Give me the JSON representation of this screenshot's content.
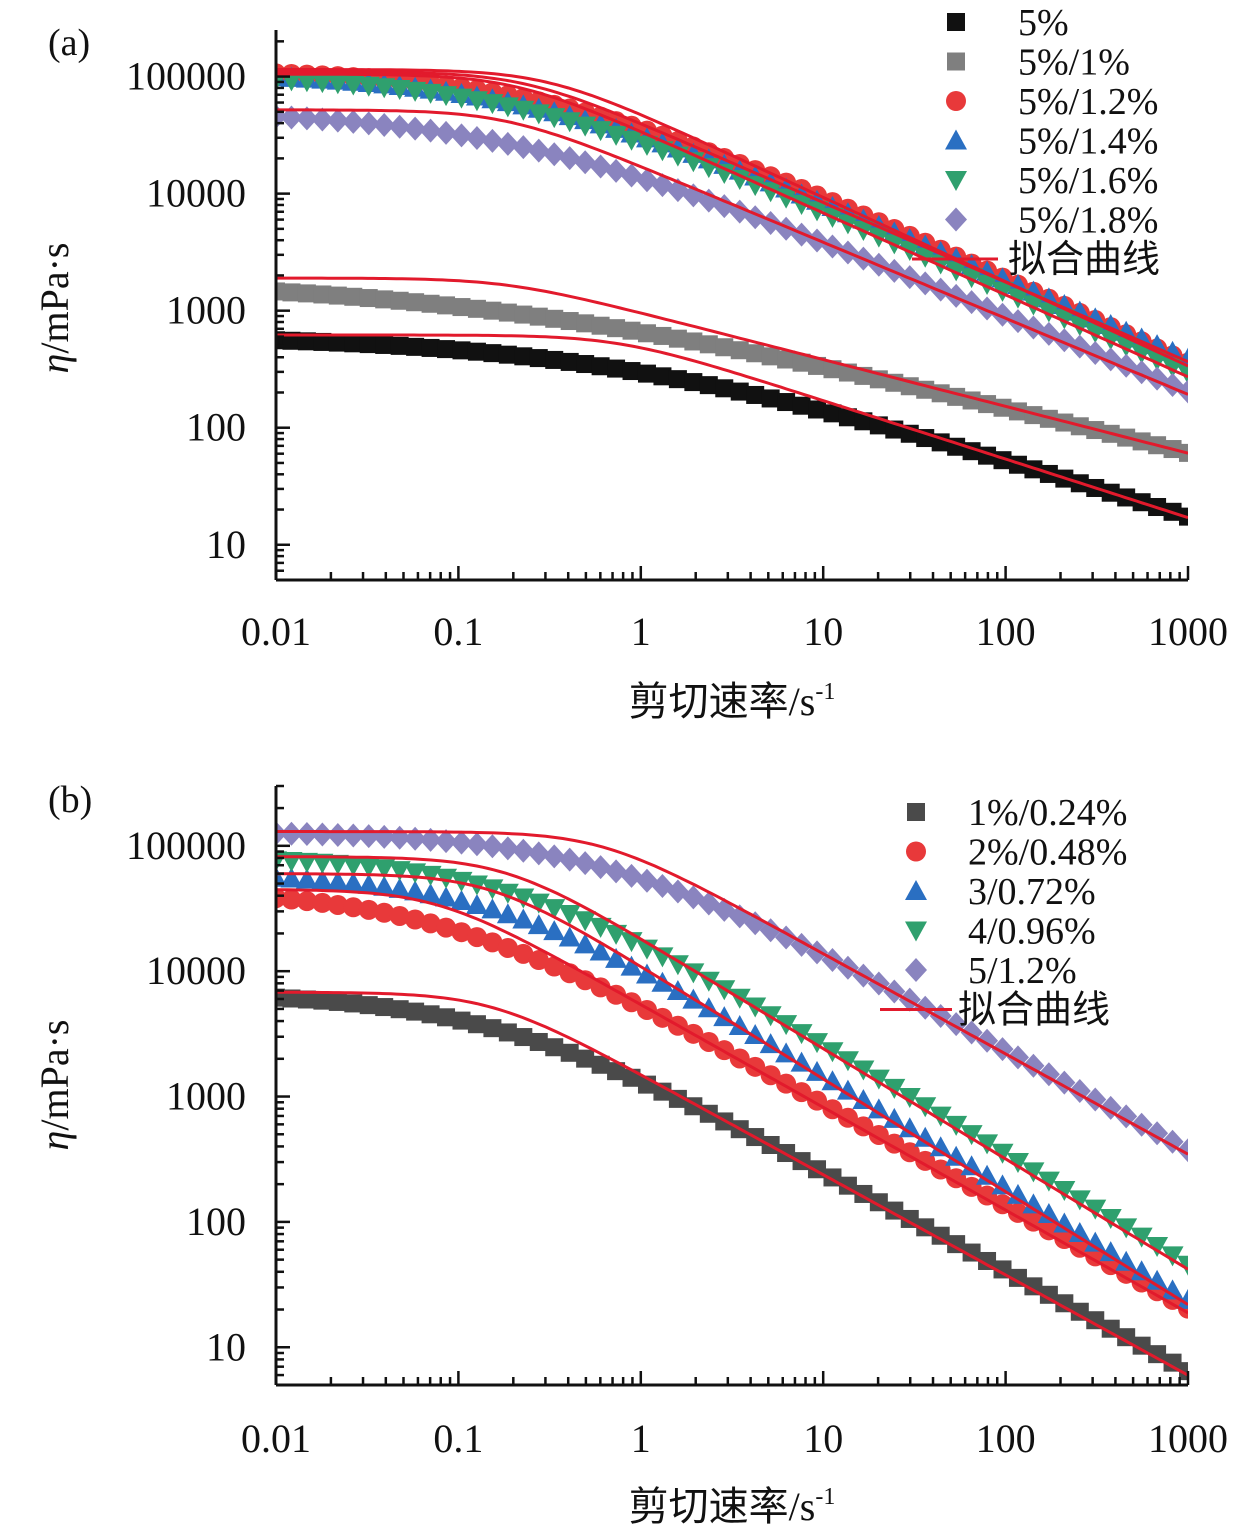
{
  "figure": {
    "x_unit_superscript": "-1",
    "colors": {
      "black": "#111111",
      "gray": "#7f7f7f",
      "red": "#e8393a",
      "blue": "#2a6fc2",
      "green": "#2fa06e",
      "purple": "#8a84bf",
      "darkgray": "#4a4a4a",
      "fit": "#e21a2c"
    }
  },
  "chart_data": [
    {
      "panel": "(a)",
      "type": "scatter",
      "xscale": "log",
      "yscale": "log",
      "xlim": [
        0.01,
        1000
      ],
      "ylim": [
        5,
        250000
      ],
      "xticks": [
        "0.01",
        "0.1",
        "1",
        "10",
        "100",
        "1000"
      ],
      "yticks": [
        "10",
        "100",
        "1000",
        "10000",
        "100000"
      ],
      "xlabel": "剪切速率/s",
      "ylabel": "η/mPa·s",
      "legend_position": "top-right",
      "fit_label": "拟合曲线",
      "series": [
        {
          "name": "5%",
          "marker": "square",
          "color": "#111111",
          "eta0": 620,
          "lambda": 1.2,
          "n": 0.5,
          "etainf": 0,
          "shoulder": 0
        },
        {
          "name": "5%/1%",
          "marker": "square",
          "color": "#7f7f7f",
          "eta0": 1900,
          "lambda": 5,
          "n": 0.6,
          "etainf": 0,
          "shoulder": 0
        },
        {
          "name": "5%/1.2%",
          "marker": "circle",
          "color": "#e8393a",
          "eta0": 115000,
          "lambda": 3,
          "n": 0.28,
          "etainf": 0,
          "shoulder": 0
        },
        {
          "name": "5%/1.4%",
          "marker": "triangle-up",
          "color": "#2a6fc2",
          "eta0": 110000,
          "lambda": 4,
          "n": 0.32,
          "etainf": 0,
          "shoulder": 0
        },
        {
          "name": "5%/1.6%",
          "marker": "triangle-down",
          "color": "#2fa06e",
          "eta0": 105000,
          "lambda": 4.5,
          "n": 0.3,
          "etainf": 0,
          "shoulder": 0
        },
        {
          "name": "5%/1.8%",
          "marker": "diamond",
          "color": "#8a84bf",
          "eta0": 52000,
          "lambda": 5,
          "n": 0.35,
          "etainf": 0,
          "shoulder": 0
        }
      ]
    },
    {
      "panel": "(b)",
      "type": "scatter",
      "xscale": "log",
      "yscale": "log",
      "xlim": [
        0.01,
        1000
      ],
      "ylim": [
        5,
        300000
      ],
      "xticks": [
        "0.01",
        "0.1",
        "1",
        "10",
        "100",
        "1000"
      ],
      "yticks": [
        "10",
        "100",
        "1000",
        "10000",
        "100000"
      ],
      "xlabel": "剪切速率/s",
      "ylabel": "η/mPa·s",
      "legend_position": "top-right",
      "fit_label": "拟合曲线",
      "series": [
        {
          "name": "1%/0.24%",
          "marker": "square",
          "color": "#4a4a4a",
          "eta0": 6800,
          "lambda": 6,
          "n": 0.2,
          "etainf": 0,
          "shoulder": 0
        },
        {
          "name": "2%/0.48%",
          "marker": "circle",
          "color": "#e8393a",
          "eta0": 45000,
          "lambda": 12,
          "n": 0.18,
          "etainf": 0,
          "shoulder": 0
        },
        {
          "name": "3/0.72%",
          "marker": "triangle-up",
          "color": "#2a6fc2",
          "eta0": 60000,
          "lambda": 6,
          "n": 0.1,
          "etainf": 0,
          "shoulder": 0
        },
        {
          "name": "4/0.96%",
          "marker": "triangle-down",
          "color": "#2fa06e",
          "eta0": 82000,
          "lambda": 5,
          "n": 0.12,
          "etainf": 0,
          "shoulder": 0
        },
        {
          "name": "5/1.2%",
          "marker": "diamond",
          "color": "#8a84bf",
          "eta0": 130000,
          "lambda": 1.5,
          "n": 0.2,
          "etainf": 0,
          "shoulder": 0
        }
      ]
    }
  ]
}
